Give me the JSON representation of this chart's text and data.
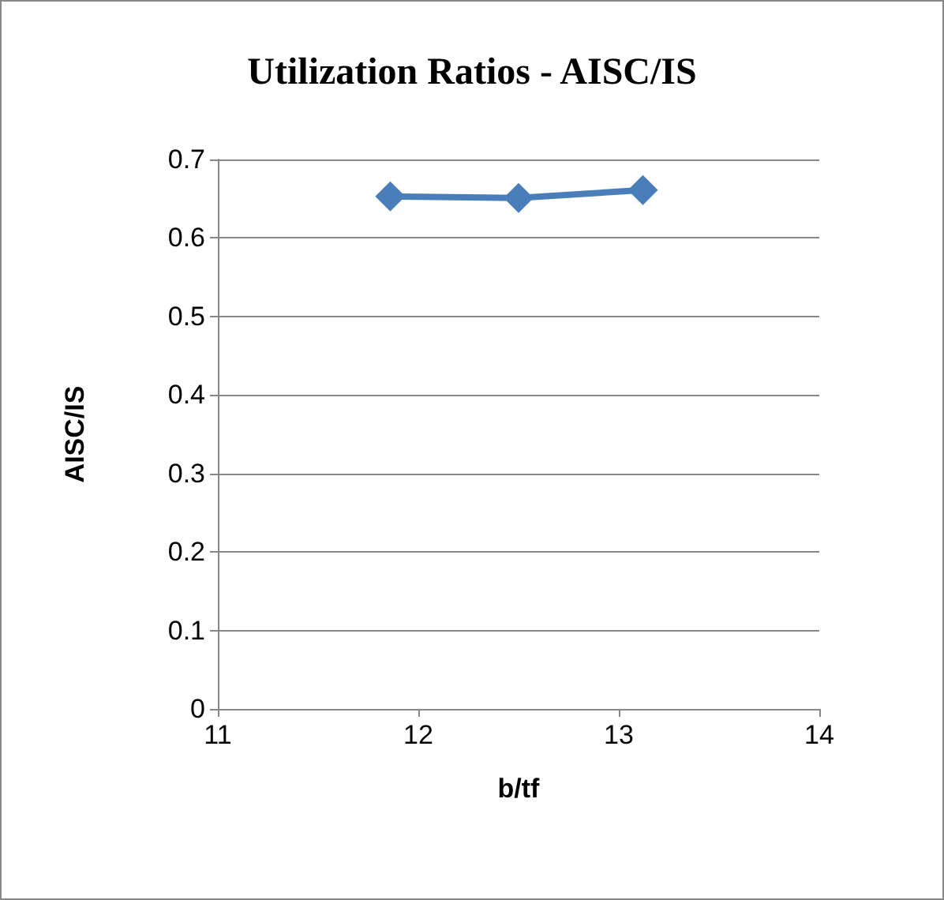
{
  "chart_data": {
    "type": "line",
    "title": "Utilization Ratios - AISC/IS",
    "xlabel": "b/tf",
    "ylabel": "AISC/IS",
    "x": [
      11.86,
      12.5,
      13.12
    ],
    "series": [
      {
        "color": "#4a7ebb",
        "values": [
          0.653,
          0.651,
          0.661
        ]
      }
    ],
    "xlim": [
      11,
      14
    ],
    "xticks": [
      11,
      12,
      13,
      14
    ],
    "ylim": [
      0,
      0.7
    ],
    "yticks": [
      0,
      0.1,
      0.2,
      0.3,
      0.4,
      0.5,
      0.6,
      0.7
    ],
    "grid": "y",
    "marker": "diamond",
    "line_style": "solid"
  }
}
